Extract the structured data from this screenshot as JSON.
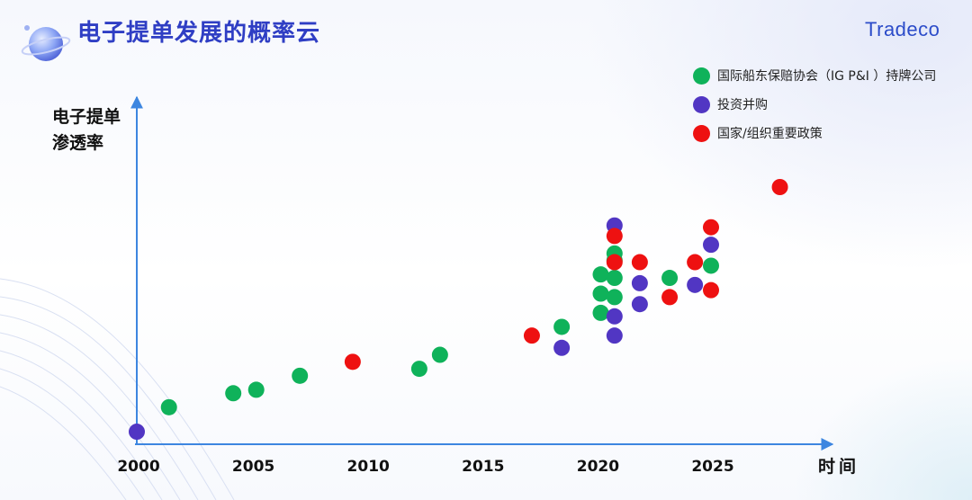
{
  "header": {
    "title": "电子提单发展的概率云",
    "logo_text": "Tradeco"
  },
  "chart_data": {
    "type": "scatter",
    "title": "电子提单发展的概率云",
    "ylabel": [
      "电子提单",
      "渗透率"
    ],
    "xlabel": "时间",
    "x_ticks": [
      "2000",
      "2005",
      "2010",
      "2015",
      "2020",
      "2025"
    ],
    "xlim": [
      2000,
      2028.5
    ],
    "ylim": [
      0,
      100
    ],
    "grid": false,
    "legend_position": "top-right",
    "series": [
      {
        "name": "国际船东保赔协会（IG P&I ）持牌公司",
        "color": "#0fb25a",
        "points": [
          [
            2001.4,
            7.5
          ],
          [
            2004.2,
            11.5
          ],
          [
            2005.2,
            12.5
          ],
          [
            2007.1,
            16.5
          ],
          [
            2012.3,
            18.5
          ],
          [
            2013.2,
            22.5
          ],
          [
            2018.5,
            30.5
          ],
          [
            2020.2,
            34.5
          ],
          [
            2020.2,
            40
          ],
          [
            2020.2,
            45.5
          ],
          [
            2020.8,
            39
          ],
          [
            2020.8,
            44.5
          ],
          [
            2020.8,
            49.5
          ],
          [
            2020.8,
            51.5
          ],
          [
            2023.2,
            44.5
          ],
          [
            2025.0,
            48
          ]
        ]
      },
      {
        "name": "投资并购",
        "color": "#5136c3",
        "points": [
          [
            2000.0,
            0.5
          ],
          [
            2018.5,
            24.5
          ],
          [
            2020.8,
            28
          ],
          [
            2020.8,
            33.5
          ],
          [
            2020.8,
            59.5
          ],
          [
            2021.9,
            37
          ],
          [
            2021.9,
            43
          ],
          [
            2024.3,
            42.5
          ],
          [
            2025.0,
            54
          ]
        ]
      },
      {
        "name": "国家/组织重要政策",
        "color": "#ee1111",
        "points": [
          [
            2009.4,
            20.5
          ],
          [
            2017.2,
            28
          ],
          [
            2020.8,
            49
          ],
          [
            2020.8,
            56.5
          ],
          [
            2021.9,
            49
          ],
          [
            2023.2,
            39
          ],
          [
            2024.3,
            49
          ],
          [
            2025.0,
            41
          ],
          [
            2025.0,
            59
          ],
          [
            2028.0,
            70.5
          ]
        ]
      }
    ]
  }
}
